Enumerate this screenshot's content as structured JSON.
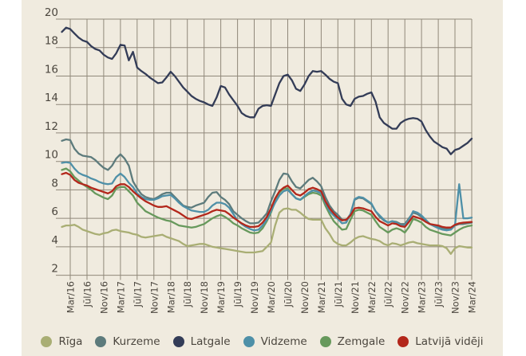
{
  "figure": {
    "background": "#f0ebdf",
    "grid_color": "#90887a",
    "text_color": "#4b463e"
  },
  "chart_data": {
    "type": "line",
    "title": "",
    "xlabel": "",
    "ylabel": "",
    "x_start": "Jan/16",
    "x_end": "Mar/24",
    "x_frequency": "monthly",
    "x_tick_labels": [
      "Mar/16",
      "Jūl/16",
      "Nov/16",
      "Mar/17",
      "Jūl/17",
      "Nov/17",
      "Mar/18",
      "Jūl/18",
      "Nov/18",
      "Mar/19",
      "Jūl/19",
      "Nov/19",
      "Mar/20",
      "Jūl/20",
      "Nov/20",
      "Mar/21",
      "Jūl/21",
      "Nov/21",
      "Mar/22",
      "Jūl/22",
      "Nov/22",
      "Mar/23",
      "Jūl/23",
      "Nov/23",
      "Mar/24"
    ],
    "y_ticks": [
      2,
      4,
      6,
      8,
      10,
      12,
      14,
      16,
      18,
      20
    ],
    "ylim": [
      2,
      20
    ],
    "grid": true,
    "legend_position": "bottom",
    "draw_order": [
      0,
      1,
      4,
      3,
      5,
      2
    ],
    "series": [
      {
        "name": "Rīga",
        "color": "#a9ae74",
        "values": [
          5.4,
          5.5,
          5.5,
          5.55,
          5.4,
          5.2,
          5.1,
          5.0,
          4.9,
          4.85,
          4.95,
          5.0,
          5.15,
          5.2,
          5.1,
          5.05,
          5.0,
          4.9,
          4.85,
          4.7,
          4.65,
          4.7,
          4.75,
          4.8,
          4.85,
          4.7,
          4.6,
          4.5,
          4.4,
          4.2,
          4.05,
          4.1,
          4.15,
          4.2,
          4.2,
          4.1,
          4.0,
          3.95,
          3.9,
          3.85,
          3.8,
          3.75,
          3.7,
          3.65,
          3.6,
          3.6,
          3.6,
          3.65,
          3.7,
          4.0,
          4.3,
          5.5,
          6.4,
          6.65,
          6.7,
          6.6,
          6.6,
          6.4,
          6.15,
          5.95,
          5.9,
          5.9,
          5.9,
          5.3,
          4.9,
          4.4,
          4.2,
          4.1,
          4.1,
          4.3,
          4.55,
          4.7,
          4.75,
          4.65,
          4.55,
          4.5,
          4.4,
          4.2,
          4.1,
          4.25,
          4.2,
          4.1,
          4.2,
          4.3,
          4.35,
          4.25,
          4.2,
          4.15,
          4.1,
          4.1,
          4.1,
          4.05,
          3.9,
          3.5,
          3.9,
          4.05,
          4.0,
          3.95,
          3.95
        ]
      },
      {
        "name": "Kurzeme",
        "color": "#5d7b7c",
        "values": [
          11.45,
          11.55,
          11.5,
          10.9,
          10.55,
          10.4,
          10.35,
          10.3,
          10.1,
          9.8,
          9.55,
          9.4,
          9.7,
          10.2,
          10.5,
          10.2,
          9.7,
          8.6,
          8.1,
          7.7,
          7.5,
          7.4,
          7.35,
          7.5,
          7.7,
          7.8,
          7.8,
          7.5,
          7.2,
          6.9,
          6.8,
          6.75,
          6.9,
          7.0,
          7.1,
          7.5,
          7.8,
          7.85,
          7.5,
          7.3,
          7.0,
          6.5,
          6.25,
          6.0,
          5.8,
          5.65,
          5.65,
          5.7,
          6.0,
          6.35,
          7.2,
          7.9,
          8.7,
          9.15,
          9.1,
          8.6,
          8.2,
          8.1,
          8.4,
          8.7,
          8.85,
          8.6,
          8.25,
          7.5,
          6.9,
          6.5,
          6.25,
          5.9,
          5.85,
          6.3,
          7.3,
          7.45,
          7.4,
          7.2,
          7.0,
          6.5,
          6.1,
          5.85,
          5.7,
          5.8,
          5.75,
          5.6,
          5.6,
          6.0,
          6.4,
          6.3,
          6.1,
          5.85,
          5.6,
          5.5,
          5.4,
          5.3,
          5.25,
          5.3,
          5.5,
          5.6,
          5.6,
          5.65,
          5.7
        ]
      },
      {
        "name": "Latgale",
        "color": "#333c57",
        "values": [
          19.1,
          19.4,
          19.3,
          19.0,
          18.7,
          18.5,
          18.4,
          18.1,
          17.9,
          17.8,
          17.5,
          17.3,
          17.2,
          17.6,
          18.2,
          18.15,
          17.1,
          17.7,
          16.6,
          16.35,
          16.15,
          15.9,
          15.7,
          15.5,
          15.55,
          15.9,
          16.3,
          16.0,
          15.6,
          15.2,
          14.9,
          14.6,
          14.4,
          14.25,
          14.15,
          14.0,
          13.9,
          14.5,
          15.3,
          15.2,
          14.7,
          14.3,
          13.9,
          13.4,
          13.2,
          13.1,
          13.1,
          13.7,
          13.9,
          13.95,
          13.9,
          14.7,
          15.5,
          16.0,
          16.1,
          15.7,
          15.1,
          14.95,
          15.4,
          16.0,
          16.35,
          16.3,
          16.35,
          16.1,
          15.8,
          15.6,
          15.5,
          14.4,
          14.0,
          13.9,
          14.4,
          14.55,
          14.6,
          14.75,
          14.85,
          14.2,
          13.1,
          12.7,
          12.5,
          12.3,
          12.3,
          12.7,
          12.9,
          13.0,
          13.05,
          13.0,
          12.8,
          12.2,
          11.75,
          11.4,
          11.2,
          11.0,
          10.9,
          10.5,
          10.8,
          10.9,
          11.1,
          11.3,
          11.6
        ]
      },
      {
        "name": "Vidzeme",
        "color": "#4e90a8",
        "values": [
          9.9,
          9.95,
          9.9,
          9.5,
          9.2,
          9.05,
          8.95,
          8.8,
          8.7,
          8.55,
          8.45,
          8.4,
          8.45,
          8.9,
          9.15,
          8.9,
          8.5,
          8.2,
          7.75,
          7.5,
          7.35,
          7.3,
          7.3,
          7.4,
          7.55,
          7.6,
          7.65,
          7.4,
          7.1,
          6.85,
          6.7,
          6.55,
          6.5,
          6.45,
          6.45,
          6.6,
          6.9,
          7.1,
          7.1,
          7.0,
          6.75,
          6.3,
          5.85,
          5.6,
          5.4,
          5.25,
          5.15,
          5.2,
          5.5,
          5.9,
          6.5,
          7.1,
          7.6,
          7.9,
          8.0,
          7.7,
          7.4,
          7.3,
          7.55,
          7.8,
          7.95,
          7.9,
          7.75,
          7.1,
          6.5,
          6.2,
          5.95,
          5.65,
          5.7,
          6.3,
          7.35,
          7.5,
          7.45,
          7.25,
          7.05,
          6.5,
          6.2,
          5.9,
          5.7,
          5.8,
          5.7,
          5.5,
          5.5,
          5.9,
          6.5,
          6.4,
          6.2,
          5.9,
          5.6,
          5.45,
          5.3,
          5.2,
          5.15,
          5.2,
          5.5,
          8.4,
          6.0,
          6.0,
          6.05
        ]
      },
      {
        "name": "Zemgale",
        "color": "#67995c",
        "values": [
          9.4,
          9.5,
          9.3,
          8.9,
          8.65,
          8.4,
          8.2,
          8.0,
          7.75,
          7.6,
          7.45,
          7.35,
          7.6,
          8.1,
          8.2,
          8.2,
          7.9,
          7.6,
          7.1,
          6.8,
          6.5,
          6.35,
          6.2,
          6.05,
          5.95,
          5.85,
          5.8,
          5.65,
          5.5,
          5.45,
          5.4,
          5.35,
          5.4,
          5.5,
          5.6,
          5.8,
          6.0,
          6.15,
          6.25,
          6.1,
          5.9,
          5.65,
          5.5,
          5.3,
          5.15,
          5.0,
          4.95,
          5.0,
          5.3,
          5.8,
          6.4,
          7.2,
          7.8,
          8.1,
          8.1,
          7.7,
          7.4,
          7.3,
          7.5,
          7.7,
          7.8,
          7.75,
          7.6,
          6.9,
          6.3,
          5.8,
          5.5,
          5.2,
          5.25,
          5.9,
          6.5,
          6.6,
          6.55,
          6.4,
          6.25,
          5.8,
          5.4,
          5.2,
          5.0,
          5.2,
          5.3,
          5.2,
          5.0,
          5.4,
          5.95,
          5.85,
          5.7,
          5.4,
          5.2,
          5.1,
          5.0,
          4.9,
          4.85,
          4.8,
          5.0,
          5.2,
          5.35,
          5.45,
          5.5
        ]
      },
      {
        "name": "Latvijā vidēji",
        "color": "#b3271b",
        "values": [
          9.1,
          9.2,
          9.05,
          8.7,
          8.5,
          8.4,
          8.3,
          8.15,
          8.05,
          7.95,
          7.85,
          7.75,
          7.9,
          8.25,
          8.4,
          8.4,
          8.2,
          7.9,
          7.65,
          7.4,
          7.2,
          7.05,
          6.9,
          6.8,
          6.8,
          6.85,
          6.7,
          6.55,
          6.4,
          6.2,
          6.0,
          5.95,
          6.05,
          6.15,
          6.25,
          6.35,
          6.5,
          6.6,
          6.55,
          6.5,
          6.3,
          6.05,
          5.85,
          5.65,
          5.5,
          5.4,
          5.4,
          5.45,
          5.7,
          6.1,
          6.7,
          7.4,
          7.9,
          8.15,
          8.3,
          8.0,
          7.7,
          7.6,
          7.8,
          8.05,
          8.15,
          8.05,
          7.9,
          7.2,
          6.7,
          6.35,
          6.05,
          5.85,
          5.9,
          6.2,
          6.7,
          6.75,
          6.7,
          6.6,
          6.5,
          6.1,
          5.8,
          5.65,
          5.5,
          5.65,
          5.6,
          5.45,
          5.4,
          5.75,
          6.15,
          6.05,
          5.95,
          5.75,
          5.6,
          5.55,
          5.5,
          5.4,
          5.35,
          5.35,
          5.55,
          5.65,
          5.7,
          5.72,
          5.75
        ]
      }
    ]
  },
  "legend": {
    "items": [
      "Rīga",
      "Kurzeme",
      "Latgale",
      "Vidzeme",
      "Zemgale",
      "Latvijā vidēji"
    ]
  }
}
